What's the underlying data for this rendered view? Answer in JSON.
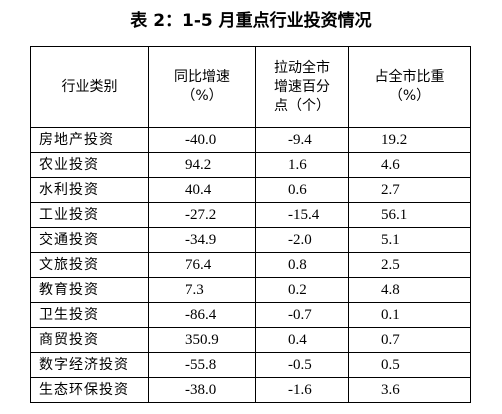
{
  "title": "表 2：1-5 月重点行业投资情况",
  "table": {
    "header": [
      [
        "行业类别"
      ],
      [
        "同比增速",
        "（%）"
      ],
      [
        "拉动全市",
        "增速百分",
        "点（个）"
      ],
      [
        "占全市比重",
        "（%）"
      ]
    ],
    "rows": [
      [
        "房地产投资",
        "-40.0",
        "-9.4",
        "19.2"
      ],
      [
        "农业投资",
        "94.2",
        "1.6",
        "4.6"
      ],
      [
        "水利投资",
        "40.4",
        "0.6",
        "2.7"
      ],
      [
        "工业投资",
        "-27.2",
        "-15.4",
        "56.1"
      ],
      [
        "交通投资",
        "-34.9",
        "-2.0",
        "5.1"
      ],
      [
        "文旅投资",
        "76.4",
        "0.8",
        "2.5"
      ],
      [
        "教育投资",
        "7.3",
        "0.2",
        "4.8"
      ],
      [
        "卫生投资",
        "-86.4",
        "-0.7",
        "0.1"
      ],
      [
        "商贸投资",
        "350.9",
        "0.4",
        "0.7"
      ],
      [
        "数字经济投资",
        "-55.8",
        "-0.5",
        "0.5"
      ],
      [
        "生态环保投资",
        "-38.0",
        "-1.6",
        "3.6"
      ]
    ]
  }
}
